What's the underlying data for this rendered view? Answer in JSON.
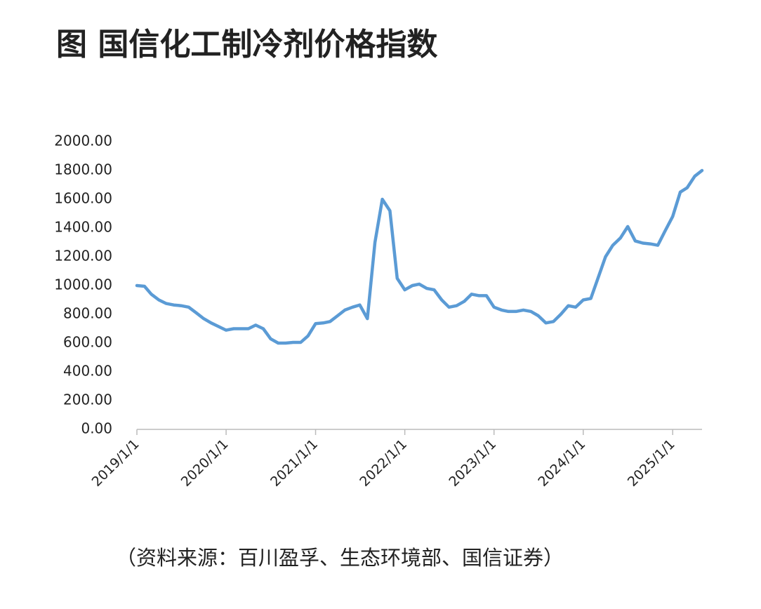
{
  "chart_data": {
    "type": "line",
    "title": "图  国信化工制冷剂价格指数",
    "source": "（资料来源：百川盈孚、生态环境部、国信证券）",
    "x": [
      "2019/1/1",
      "2019/2/1",
      "2019/3/1",
      "2019/4/1",
      "2019/5/1",
      "2019/6/1",
      "2019/7/1",
      "2019/8/1",
      "2019/9/1",
      "2019/10/1",
      "2019/11/1",
      "2019/12/1",
      "2020/1/1",
      "2020/2/1",
      "2020/3/1",
      "2020/4/1",
      "2020/5/1",
      "2020/6/1",
      "2020/7/1",
      "2020/8/1",
      "2020/9/1",
      "2020/10/1",
      "2020/11/1",
      "2020/12/1",
      "2021/1/1",
      "2021/2/1",
      "2021/3/1",
      "2021/4/1",
      "2021/5/1",
      "2021/6/1",
      "2021/7/1",
      "2021/8/1",
      "2021/9/1",
      "2021/10/1",
      "2021/11/1",
      "2021/12/1",
      "2022/1/1",
      "2022/2/1",
      "2022/3/1",
      "2022/4/1",
      "2022/5/1",
      "2022/6/1",
      "2022/7/1",
      "2022/8/1",
      "2022/9/1",
      "2022/10/1",
      "2022/11/1",
      "2022/12/1",
      "2023/1/1",
      "2023/2/1",
      "2023/3/1",
      "2023/4/1",
      "2023/5/1",
      "2023/6/1",
      "2023/7/1",
      "2023/8/1",
      "2023/9/1",
      "2023/10/1",
      "2023/11/1",
      "2023/12/1",
      "2024/1/1",
      "2024/2/1",
      "2024/3/1",
      "2024/4/1",
      "2024/5/1",
      "2024/6/1",
      "2024/7/1",
      "2024/8/1",
      "2024/9/1",
      "2024/10/1",
      "2024/11/1",
      "2024/12/1",
      "2025/1/1",
      "2025/2/1",
      "2025/3/1",
      "2025/4/1",
      "2025/5/1"
    ],
    "series": [
      {
        "color": "#5b9bd5",
        "values": [
          1000,
          995,
          940,
          900,
          875,
          865,
          860,
          850,
          810,
          770,
          740,
          715,
          690,
          700,
          700,
          700,
          725,
          700,
          630,
          600,
          600,
          605,
          605,
          650,
          735,
          740,
          750,
          790,
          830,
          850,
          865,
          770,
          1300,
          1600,
          1520,
          1050,
          970,
          1000,
          1010,
          980,
          970,
          900,
          850,
          860,
          890,
          940,
          930,
          930,
          850,
          830,
          820,
          820,
          830,
          820,
          790,
          740,
          750,
          800,
          860,
          850,
          900,
          910,
          1050,
          1200,
          1280,
          1330,
          1410,
          1310,
          1295,
          1290,
          1280,
          1380,
          1480,
          1650,
          1680,
          1760,
          1800
        ]
      }
    ],
    "xlim": [
      "2019/1/1",
      "2025/5/1"
    ],
    "xticks": [
      "2019/1/1",
      "2020/1/1",
      "2021/1/1",
      "2022/1/1",
      "2023/1/1",
      "2024/1/1",
      "2025/1/1"
    ],
    "ylim": [
      0,
      2000
    ],
    "yticks": [
      {
        "value": 0,
        "label": "0.00"
      },
      {
        "value": 200,
        "label": "200.00"
      },
      {
        "value": 400,
        "label": "400.00"
      },
      {
        "value": 600,
        "label": "600.00"
      },
      {
        "value": 800,
        "label": "800.00"
      },
      {
        "value": 1000,
        "label": "1000.00"
      },
      {
        "value": 1200,
        "label": "1200.00"
      },
      {
        "value": 1400,
        "label": "1400.00"
      },
      {
        "value": 1600,
        "label": "1600.00"
      },
      {
        "value": 1800,
        "label": "1800.00"
      },
      {
        "value": 2000,
        "label": "2000.00"
      }
    ]
  }
}
